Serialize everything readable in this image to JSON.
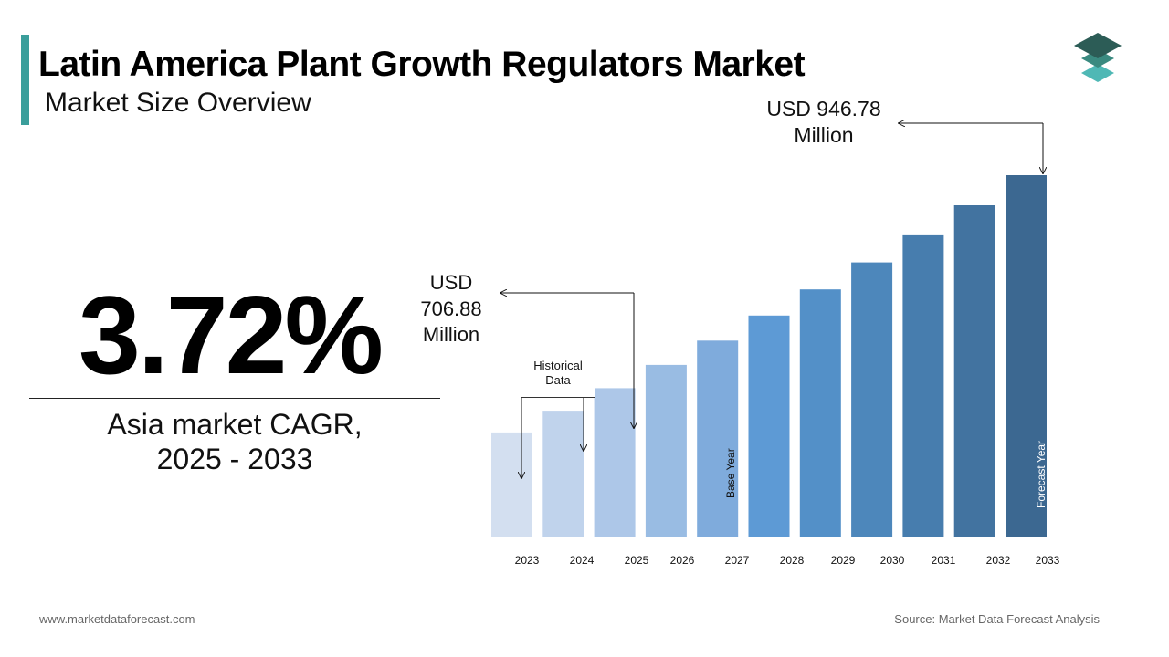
{
  "header": {
    "title": "Latin America Plant Growth Regulators Market",
    "subtitle": "Market Size Overview"
  },
  "cagr": {
    "value": "3.72%",
    "label_line1": "Asia market CAGR,",
    "label_line2": "2025 - 2033"
  },
  "annotations": {
    "forecast_value": {
      "line1": "USD 946.78",
      "line2": "Million"
    },
    "base_value": {
      "line1": "USD",
      "line2": "706.88",
      "line3": "Million"
    },
    "historical_box": {
      "line1": "Historical",
      "line2": "Data"
    },
    "base_year": "Base Year",
    "forecast_year": "Forecast Year"
  },
  "footer": {
    "website": "www.marketdataforecast.com",
    "source": "Source: Market Data Forecast Analysis"
  },
  "colors": {
    "accent": "#3a9e9b",
    "bars": [
      "#d3dff0",
      "#c0d3ec",
      "#adc7e8",
      "#99bce3",
      "#7fabdc",
      "#5d9ad5",
      "#5390c8",
      "#4d87bb",
      "#477dae",
      "#4273a0",
      "#3c6891"
    ]
  },
  "chart_data": {
    "type": "bar",
    "categories": [
      "2023",
      "2024",
      "2025",
      "2026",
      "2027",
      "2028",
      "2029",
      "2030",
      "2031",
      "2032",
      "2033"
    ],
    "values": [
      681.6,
      706.88,
      733.2,
      760.4,
      788.7,
      818.0,
      848.5,
      880.0,
      912.8,
      946.78,
      981.9
    ],
    "ylim": [
      560,
      1000
    ]
  }
}
